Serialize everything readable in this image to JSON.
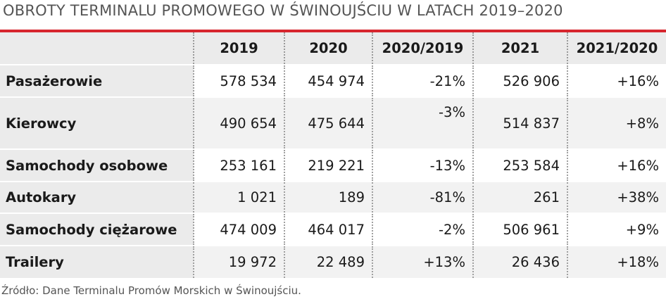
{
  "title": "OBROTY TERMINALU PROMOWEGO W ŚWINOUJŚCIU W LATACH 2019–2020",
  "header": [
    "2019",
    "2020",
    "2020/2019",
    "2021",
    "2021/2020"
  ],
  "rows": [
    {
      "label": "Pasażerowie",
      "values": [
        "578 534",
        "454 974",
        "-21%",
        "526 906",
        "+16%"
      ]
    },
    {
      "label": "Kierowcy",
      "values": [
        "490 654",
        "475 644",
        "-3%",
        "514 837",
        "+8%"
      ]
    },
    {
      "label": "Samochody osobowe",
      "values": [
        "253 161",
        "219 221",
        "-13%",
        "253 584",
        "+16%"
      ]
    },
    {
      "label": "Autokary",
      "values": [
        "1 021",
        "189",
        "-81%",
        "261",
        "+38%"
      ]
    },
    {
      "label": "Samochody ciężarowe",
      "values": [
        "474 009",
        "464 017",
        "-2%",
        "506 961",
        "+9%"
      ]
    },
    {
      "label": "Trailery",
      "values": [
        "19 972",
        "22 489",
        "+13%",
        "26 436",
        "+18%"
      ]
    }
  ],
  "source": "Źródło: Dane Terminalu Promów Morskich w Świnoujściu.",
  "colors": {
    "accent": "#d7262e",
    "label_bg": "#ebebeb",
    "row_shade": "#f2f2f2"
  }
}
